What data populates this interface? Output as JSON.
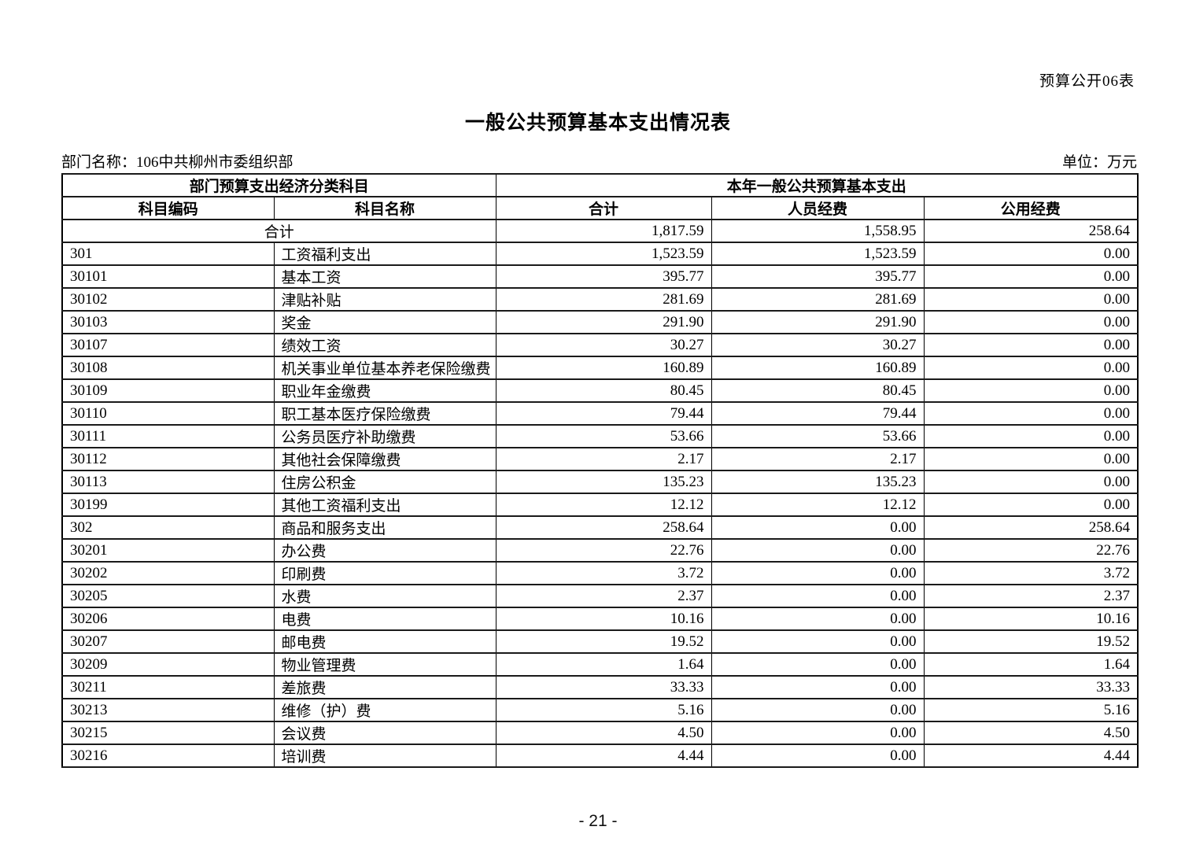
{
  "page": {
    "doc_label": "预算公开06表",
    "title": "一般公共预算基本支出情况表",
    "dept_label": "部门名称：106中共柳州市委组织部",
    "unit_label": "单位：万元",
    "page_number": "- 21 -"
  },
  "table": {
    "header_group_left": "部门预算支出经济分类科目",
    "header_group_right": "本年一般公共预算基本支出",
    "columns": [
      "科目编码",
      "科目名称",
      "合计",
      "人员经费",
      "公用经费"
    ],
    "total_row": {
      "label": "合计",
      "total": "1,817.59",
      "personnel": "1,558.95",
      "public": "258.64"
    },
    "rows": [
      {
        "code": "301",
        "name": "工资福利支出",
        "total": "1,523.59",
        "personnel": "1,523.59",
        "public": "0.00"
      },
      {
        "code": "30101",
        "name": "基本工资",
        "total": "395.77",
        "personnel": "395.77",
        "public": "0.00"
      },
      {
        "code": "30102",
        "name": "津贴补贴",
        "total": "281.69",
        "personnel": "281.69",
        "public": "0.00"
      },
      {
        "code": "30103",
        "name": "奖金",
        "total": "291.90",
        "personnel": "291.90",
        "public": "0.00"
      },
      {
        "code": "30107",
        "name": "绩效工资",
        "total": "30.27",
        "personnel": "30.27",
        "public": "0.00"
      },
      {
        "code": "30108",
        "name": "机关事业单位基本养老保险缴费",
        "total": "160.89",
        "personnel": "160.89",
        "public": "0.00"
      },
      {
        "code": "30109",
        "name": "职业年金缴费",
        "total": "80.45",
        "personnel": "80.45",
        "public": "0.00"
      },
      {
        "code": "30110",
        "name": "职工基本医疗保险缴费",
        "total": "79.44",
        "personnel": "79.44",
        "public": "0.00"
      },
      {
        "code": "30111",
        "name": "公务员医疗补助缴费",
        "total": "53.66",
        "personnel": "53.66",
        "public": "0.00"
      },
      {
        "code": "30112",
        "name": "其他社会保障缴费",
        "total": "2.17",
        "personnel": "2.17",
        "public": "0.00"
      },
      {
        "code": "30113",
        "name": "住房公积金",
        "total": "135.23",
        "personnel": "135.23",
        "public": "0.00"
      },
      {
        "code": "30199",
        "name": "其他工资福利支出",
        "total": "12.12",
        "personnel": "12.12",
        "public": "0.00"
      },
      {
        "code": "302",
        "name": "商品和服务支出",
        "total": "258.64",
        "personnel": "0.00",
        "public": "258.64"
      },
      {
        "code": "30201",
        "name": "办公费",
        "total": "22.76",
        "personnel": "0.00",
        "public": "22.76"
      },
      {
        "code": "30202",
        "name": "印刷费",
        "total": "3.72",
        "personnel": "0.00",
        "public": "3.72"
      },
      {
        "code": "30205",
        "name": "水费",
        "total": "2.37",
        "personnel": "0.00",
        "public": "2.37"
      },
      {
        "code": "30206",
        "name": "电费",
        "total": "10.16",
        "personnel": "0.00",
        "public": "10.16"
      },
      {
        "code": "30207",
        "name": "邮电费",
        "total": "19.52",
        "personnel": "0.00",
        "public": "19.52"
      },
      {
        "code": "30209",
        "name": "物业管理费",
        "total": "1.64",
        "personnel": "0.00",
        "public": "1.64"
      },
      {
        "code": "30211",
        "name": "差旅费",
        "total": "33.33",
        "personnel": "0.00",
        "public": "33.33"
      },
      {
        "code": "30213",
        "name": "维修（护）费",
        "total": "5.16",
        "personnel": "0.00",
        "public": "5.16"
      },
      {
        "code": "30215",
        "name": "会议费",
        "total": "4.50",
        "personnel": "0.00",
        "public": "4.50"
      },
      {
        "code": "30216",
        "name": "培训费",
        "total": "4.44",
        "personnel": "0.00",
        "public": "4.44"
      }
    ]
  }
}
